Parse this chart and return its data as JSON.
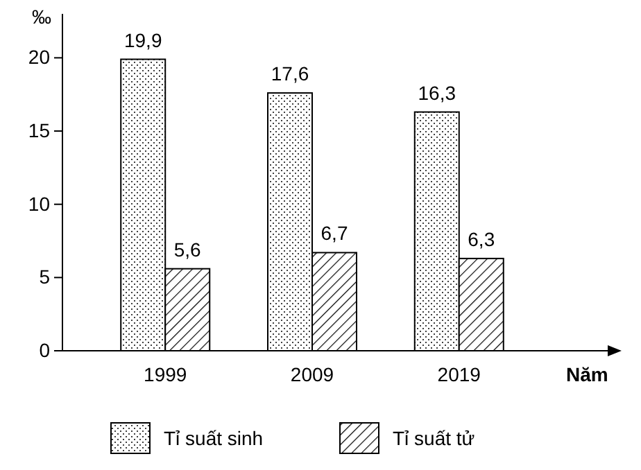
{
  "chart_data": {
    "type": "bar",
    "categories": [
      "1999",
      "2009",
      "2019"
    ],
    "series": [
      {
        "name": "Tỉ suất sinh",
        "color": "#000000",
        "values": [
          19.9,
          17.6,
          16.3
        ],
        "value_labels": [
          "19,9",
          "17,6",
          "16,3"
        ]
      },
      {
        "name": "Tỉ suất tử",
        "color": "#000000",
        "values": [
          5.6,
          6.7,
          6.3
        ],
        "value_labels": [
          "5,6",
          "6,7",
          "6,3"
        ]
      }
    ],
    "ylabel": "‰",
    "xlabel": "Năm",
    "ylim": [
      0,
      23
    ],
    "yticks": [
      0,
      5,
      10,
      15,
      20
    ],
    "legend": "bottom",
    "grid": false
  }
}
